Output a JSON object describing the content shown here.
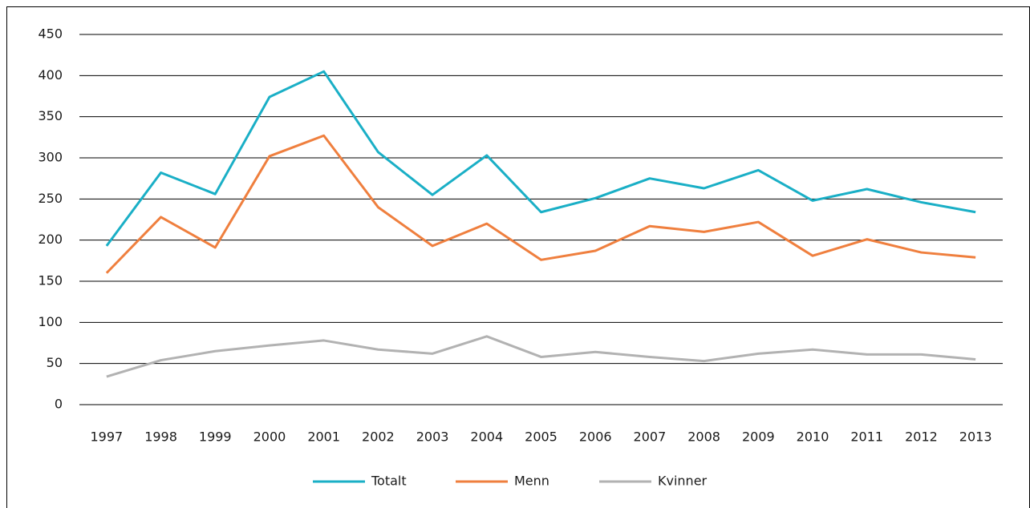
{
  "chart_data": {
    "type": "line",
    "categories": [
      "1997",
      "1998",
      "1999",
      "2000",
      "2001",
      "2002",
      "2003",
      "2004",
      "2005",
      "2006",
      "2007",
      "2008",
      "2009",
      "2010",
      "2011",
      "2012",
      "2013"
    ],
    "series": [
      {
        "name": "Totalt",
        "color": "#1aafc6",
        "values": [
          193,
          282,
          256,
          374,
          405,
          307,
          255,
          303,
          234,
          251,
          275,
          263,
          285,
          248,
          262,
          246,
          234
        ]
      },
      {
        "name": "Menn",
        "color": "#ef7f3e",
        "values": [
          160,
          228,
          191,
          302,
          327,
          240,
          193,
          220,
          176,
          187,
          217,
          210,
          222,
          181,
          201,
          185,
          179
        ]
      },
      {
        "name": "Kvinner",
        "color": "#b2b2b2",
        "values": [
          34,
          54,
          65,
          72,
          78,
          67,
          62,
          83,
          58,
          64,
          58,
          53,
          62,
          67,
          61,
          61,
          55
        ]
      }
    ],
    "ylim": [
      0,
      450
    ],
    "yticks": [
      0,
      50,
      100,
      150,
      200,
      250,
      300,
      350,
      400,
      450
    ],
    "grid": true,
    "legend": "bottom"
  }
}
